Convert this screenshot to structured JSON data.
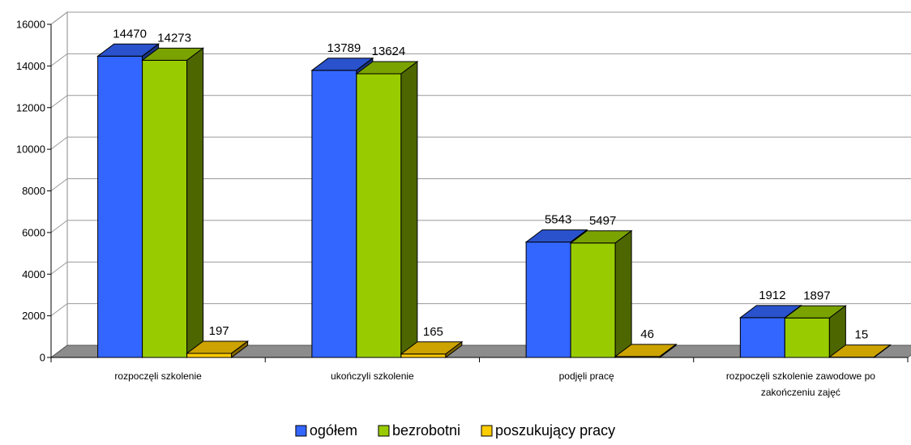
{
  "chart_data": {
    "type": "bar",
    "title": "",
    "xlabel": "",
    "ylabel": "",
    "ylim": [
      0,
      16000
    ],
    "yticks": [
      0,
      2000,
      4000,
      6000,
      8000,
      10000,
      12000,
      14000,
      16000
    ],
    "grid": true,
    "legend_position": "bottom",
    "categories": [
      [
        "rozpoczęli szkolenie"
      ],
      [
        "ukończyli szkolenie"
      ],
      [
        "podjęli pracę"
      ],
      [
        "rozpoczęli szkolenie zawodowe po",
        "zakończeniu zajęć"
      ]
    ],
    "series": [
      {
        "name": "ogółem",
        "color": "#3366ff",
        "values": [
          14470,
          13789,
          5543,
          1912
        ]
      },
      {
        "name": "bezrobotni",
        "color": "#99cc00",
        "values": [
          14273,
          13624,
          5497,
          1897
        ]
      },
      {
        "name": "poszukujący pracy",
        "color": "#ffcc00",
        "values": [
          197,
          165,
          46,
          15
        ]
      }
    ]
  }
}
